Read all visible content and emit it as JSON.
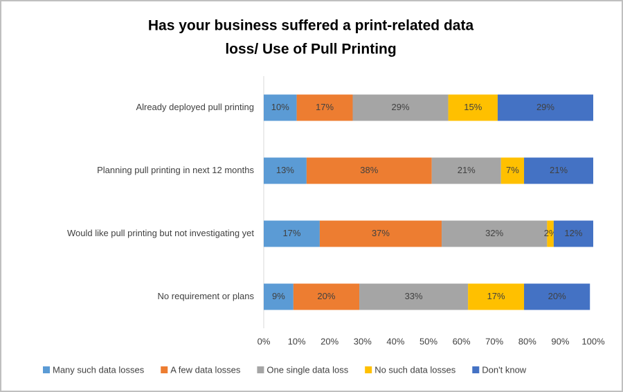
{
  "chart_data": {
    "type": "stacked-bar-horizontal",
    "title": [
      "Has your business suffered a print-related data",
      "loss/ Use of Pull Printing"
    ],
    "categories": [
      "Already deployed pull printing",
      "Planning pull printing in next 12 months",
      "Would like pull printing but not investigating yet",
      "No requirement or plans"
    ],
    "series": [
      {
        "name": "Many such data losses",
        "color": "#5b9bd5",
        "values": [
          10,
          13,
          17,
          9
        ],
        "value_labels": [
          "10%",
          "13%",
          "17%",
          "9%"
        ]
      },
      {
        "name": "A few data losses",
        "color": "#ed7d31",
        "values": [
          17,
          38,
          37,
          20
        ],
        "value_labels": [
          "17%",
          "38%",
          "37%",
          "20%"
        ]
      },
      {
        "name": "One single data loss",
        "color": "#a5a5a5",
        "values": [
          29,
          21,
          32,
          33
        ],
        "value_labels": [
          "29%",
          "21%",
          "32%",
          "33%"
        ]
      },
      {
        "name": "No such data losses",
        "color": "#ffc000",
        "values": [
          15,
          7,
          2,
          17
        ],
        "value_labels": [
          "15%",
          "7%",
          "2%",
          "17%"
        ]
      },
      {
        "name": "Don't know",
        "color": "#4472c4",
        "values": [
          29,
          21,
          12,
          20
        ],
        "value_labels": [
          "29%",
          "21%",
          "12%",
          "20%"
        ]
      }
    ],
    "xlim": [
      0,
      100
    ],
    "xticks": [
      {
        "value": 0,
        "label": "0%"
      },
      {
        "value": 10,
        "label": "10%"
      },
      {
        "value": 20,
        "label": "20%"
      },
      {
        "value": 30,
        "label": "30%"
      },
      {
        "value": 40,
        "label": "40%"
      },
      {
        "value": 50,
        "label": "50%"
      },
      {
        "value": 60,
        "label": "60%"
      },
      {
        "value": 70,
        "label": "70%"
      },
      {
        "value": 80,
        "label": "80%"
      },
      {
        "value": 90,
        "label": "90%"
      },
      {
        "value": 100,
        "label": "100%"
      }
    ],
    "grid": false,
    "legend": "bottom"
  }
}
